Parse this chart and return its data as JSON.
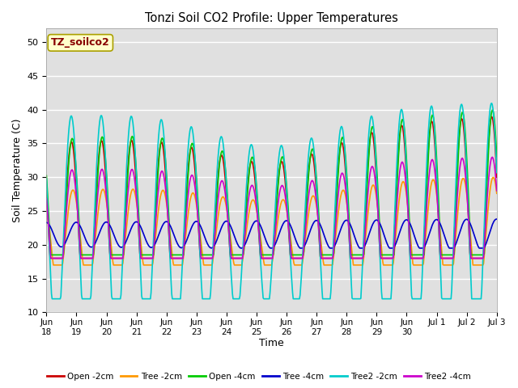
{
  "title": "Tonzi Soil CO2 Profile: Upper Temperatures",
  "xlabel": "Time",
  "ylabel": "Soil Temperature (C)",
  "ylim": [
    10,
    52
  ],
  "yticks": [
    10,
    15,
    20,
    25,
    30,
    35,
    40,
    45,
    50
  ],
  "bg_color": "#e0e0e0",
  "fig_color": "#ffffff",
  "annotation_text": "TZ_soilco2",
  "annotation_bg": "#ffffcc",
  "annotation_edge": "#aaa000",
  "annotation_color": "#880000",
  "series": {
    "Open -2cm": {
      "color": "#cc0000",
      "lw": 1.2
    },
    "Tree -2cm": {
      "color": "#ff9900",
      "lw": 1.2
    },
    "Open -4cm": {
      "color": "#00cc00",
      "lw": 1.2
    },
    "Tree -4cm": {
      "color": "#0000cc",
      "lw": 1.2
    },
    "Tree2 -2cm": {
      "color": "#00cccc",
      "lw": 1.2
    },
    "Tree2 -4cm": {
      "color": "#cc00cc",
      "lw": 1.2
    }
  }
}
